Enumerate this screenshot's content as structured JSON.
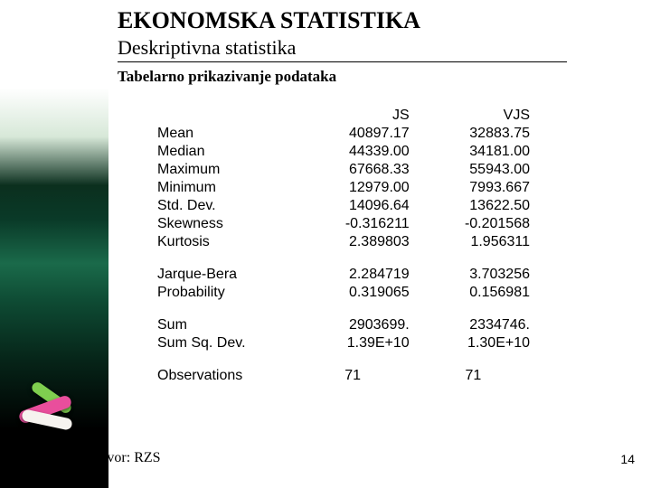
{
  "titles": {
    "main": "EKONOMSKA STATISTIKA",
    "sub": "Deskriptivna statistika",
    "subsub": "Tabelarno prikazivanje podataka"
  },
  "table": {
    "columns": [
      "JS",
      "VJS"
    ],
    "groups": [
      {
        "rows": [
          {
            "label": "Mean",
            "js": "40897.17",
            "vjs": "32883.75"
          },
          {
            "label": "Median",
            "js": "44339.00",
            "vjs": "34181.00"
          },
          {
            "label": "Maximum",
            "js": "67668.33",
            "vjs": "55943.00"
          },
          {
            "label": "Minimum",
            "js": "12979.00",
            "vjs": "7993.667"
          },
          {
            "label": "Std. Dev.",
            "js": "14096.64",
            "vjs": "13622.50"
          },
          {
            "label": "Skewness",
            "js": "-0.316211",
            "vjs": "-0.201568"
          },
          {
            "label": "Kurtosis",
            "js": "2.389803",
            "vjs": "1.956311"
          }
        ]
      },
      {
        "rows": [
          {
            "label": "Jarque-Bera",
            "js": "2.284719",
            "vjs": "3.703256"
          },
          {
            "label": "Probability",
            "js": "0.319065",
            "vjs": "0.156981"
          }
        ]
      },
      {
        "rows": [
          {
            "label": "Sum",
            "js": "2903699.",
            "vjs": "2334746."
          },
          {
            "label": "Sum Sq. Dev.",
            "js": "1.39E+10",
            "vjs": "1.30E+10"
          }
        ]
      },
      {
        "rows": [
          {
            "label": "Observations",
            "js": "71",
            "vjs": "71",
            "center": true
          }
        ]
      }
    ],
    "font_size": 16,
    "text_color": "#000000"
  },
  "source": "Izvor: RZS",
  "page_number": "14",
  "colors": {
    "background": "#ffffff",
    "chalk_pink": "#e94e9c",
    "chalk_white": "#f6f3ef",
    "chalk_green": "#7fcf4f"
  }
}
